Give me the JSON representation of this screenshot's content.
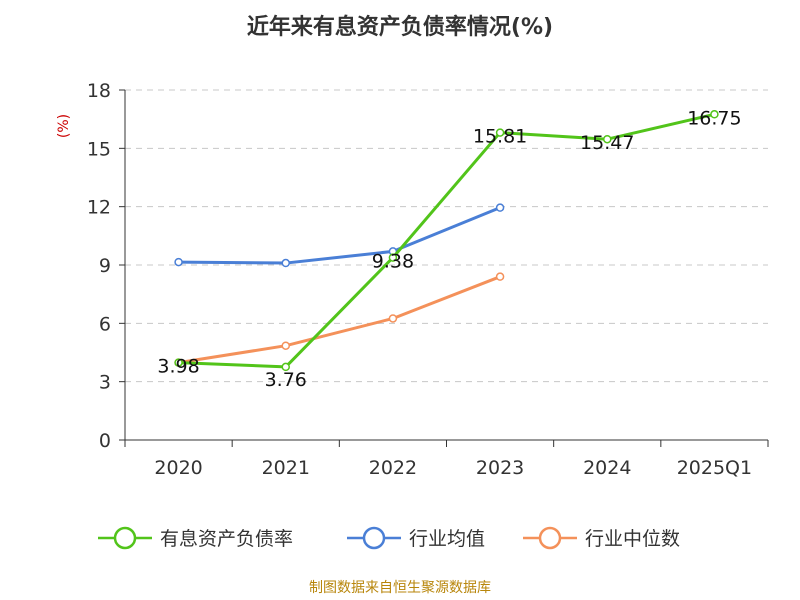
{
  "chart_data": {
    "type": "line",
    "title": "近年来有息资产负债率情况(%)",
    "ylabel": "(%)",
    "categories": [
      "2020",
      "2021",
      "2022",
      "2023",
      "2024",
      "2025Q1"
    ],
    "ylim": [
      0,
      18
    ],
    "yticks": [
      0,
      3,
      6,
      9,
      12,
      15,
      18
    ],
    "grid": true,
    "legend_position": "bottom",
    "series": [
      {
        "name": "有息资产负债率",
        "color": "#52c41a",
        "values": [
          3.98,
          3.76,
          9.38,
          15.81,
          15.47,
          16.75
        ],
        "labels": [
          "3.98",
          "3.76",
          "9.38",
          "15.81",
          "15.47",
          "16.75"
        ]
      },
      {
        "name": "行业均值",
        "color": "#4a7fd6",
        "values": [
          9.15,
          9.1,
          9.7,
          11.95,
          null,
          null
        ]
      },
      {
        "name": "行业中位数",
        "color": "#f4915a",
        "values": [
          3.98,
          4.85,
          6.25,
          8.4,
          null,
          null
        ]
      }
    ]
  },
  "source": "制图数据来自恒生聚源数据库"
}
